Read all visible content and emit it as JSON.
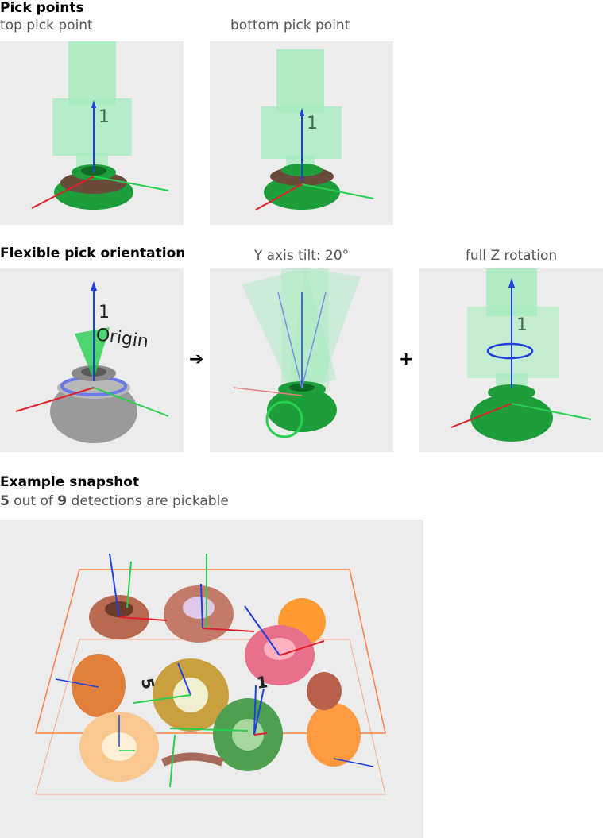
{
  "section1": {
    "title": "Pick points",
    "caption_left": "top pick point",
    "caption_right": "bottom pick point",
    "label_1": "1"
  },
  "section2": {
    "title": "Flexible pick orientation",
    "caption_mid": "Y axis tilt: 20°",
    "caption_right": "full Z rotation",
    "origin_label": "Origin",
    "label_1": "1",
    "arrow_symbol": "➔",
    "plus_symbol": "+"
  },
  "section3": {
    "title": "Example snapshot",
    "count_pickable": "5",
    "text_mid": " out of ",
    "count_total": "9",
    "text_end": " detections are pickable",
    "label_5": "5",
    "label_1": "1"
  },
  "colors": {
    "gripper": "#a8ecc0",
    "part_green": "#1e9e3a",
    "axis_x": "#e0202a",
    "axis_y": "#28d050",
    "axis_z": "#2040e0",
    "bbox": "#ff8040"
  }
}
